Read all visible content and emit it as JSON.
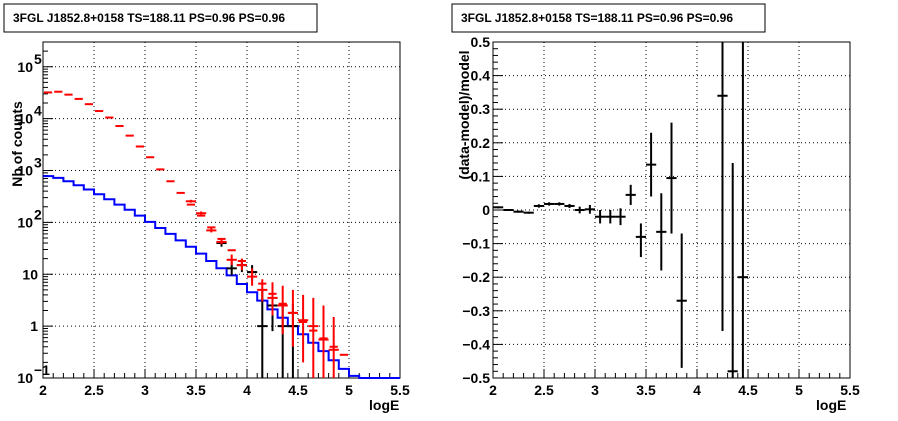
{
  "chart_data": [
    {
      "type": "step-histogram",
      "title": "3FGL J1852.8+0158 TS=188.11 PS=0.96 PS=0.96",
      "xlabel": "logE",
      "ylabel": "Nb of counts",
      "xlim": [
        2,
        5.5
      ],
      "ylim": [
        0.1,
        300000
      ],
      "yscale": "log",
      "xticks": [
        "2",
        "2.5",
        "3",
        "3.5",
        "4",
        "4.5",
        "5",
        "5.5"
      ],
      "yticks": [
        {
          "v": 0.1,
          "base": "10",
          "exp": "−1"
        },
        {
          "v": 1,
          "base": "1",
          "exp": ""
        },
        {
          "v": 10,
          "base": "10",
          "exp": ""
        },
        {
          "v": 100,
          "base": "10",
          "exp": "2"
        },
        {
          "v": 1000,
          "base": "10",
          "exp": "3"
        },
        {
          "v": 10000,
          "base": "10",
          "exp": "4"
        },
        {
          "v": 100000,
          "base": "10",
          "exp": "5"
        }
      ],
      "grid": true,
      "bin_width": 0.1,
      "colors": {
        "total": "#ff0000",
        "source": "#0000ff",
        "data": "#000000"
      },
      "series": [
        {
          "id": "total_model",
          "x": [
            2.05,
            2.15,
            2.25,
            2.35,
            2.45,
            2.55,
            2.65,
            2.75,
            2.85,
            2.95,
            3.05,
            3.15,
            3.25,
            3.35,
            3.45,
            3.55,
            3.65,
            3.75,
            3.85,
            3.95,
            4.05,
            4.15,
            4.25,
            4.35,
            4.45,
            4.55,
            4.65,
            4.75,
            4.85,
            4.95
          ],
          "values": [
            32000,
            33000,
            29000,
            24000,
            19000,
            14000,
            10500,
            7200,
            4700,
            2900,
            1800,
            1050,
            620,
            370,
            220,
            135,
            80,
            48,
            29,
            18,
            11,
            6.6,
            4.2,
            2.7,
            1.8,
            1.2,
            0.82,
            0.58,
            0.4,
            0.28
          ]
        },
        {
          "id": "source_model",
          "x": [
            2.05,
            2.15,
            2.25,
            2.35,
            2.45,
            2.55,
            2.65,
            2.75,
            2.85,
            2.95,
            3.05,
            3.15,
            3.25,
            3.35,
            3.45,
            3.55,
            3.65,
            3.75,
            3.85,
            3.95,
            4.05,
            4.15,
            4.25,
            4.35,
            4.45,
            4.55,
            4.65,
            4.75,
            4.85,
            4.95,
            5.05,
            5.15,
            5.25,
            5.35,
            5.45
          ],
          "values": [
            780,
            720,
            620,
            520,
            430,
            350,
            280,
            220,
            175,
            135,
            102,
            78,
            60,
            45,
            34,
            25,
            18,
            13,
            9.5,
            6.5,
            4.5,
            3.1,
            2.1,
            1.45,
            1.0,
            0.7,
            0.48,
            0.33,
            0.22,
            0.15,
            0.11,
            0.1,
            0.1,
            0.1,
            0.1
          ]
        },
        {
          "id": "counts_points",
          "x": [
            3.75,
            3.85,
            3.95,
            4.05,
            4.15,
            4.25,
            4.35,
            4.45
          ],
          "values": [
            40,
            13,
            15,
            11,
            1.0,
            2.5,
            1.0,
            1.0
          ],
          "err_low": [
            34,
            9.5,
            11,
            7.5,
            0.1,
            0.8,
            0.1,
            0.1
          ],
          "err_high": [
            47,
            17.5,
            19.5,
            15,
            5,
            6,
            2.7,
            2.7
          ]
        },
        {
          "id": "red_points",
          "x": [
            3.45,
            3.55,
            3.65,
            3.75,
            3.85,
            3.95,
            4.05,
            4.15,
            4.25,
            4.35,
            4.45,
            4.55,
            4.65,
            4.75,
            4.85
          ],
          "values": [
            255,
            150,
            70,
            42,
            19,
            15,
            9,
            5,
            3.5,
            2.5,
            1.8,
            1.3,
            1.0,
            0.55,
            0.35
          ],
          "err_low": [
            240,
            140,
            64,
            38,
            15,
            12,
            6,
            3,
            1.6,
            0.7,
            0.4,
            0.2,
            0.1,
            0.1,
            0.1
          ],
          "err_high": [
            272,
            162,
            78,
            48,
            24,
            20,
            13,
            8,
            7,
            6,
            5,
            4,
            3.5,
            2.5,
            1.5
          ]
        }
      ]
    },
    {
      "type": "error-points",
      "title": "3FGL J1852.8+0158 TS=188.11 PS=0.96 PS=0.96",
      "xlabel": "logE",
      "ylabel": "(data-model)/model",
      "xlim": [
        2,
        5.5
      ],
      "ylim": [
        -0.5,
        0.5
      ],
      "xticks": [
        "2",
        "2.5",
        "3",
        "3.5",
        "4",
        "4.5",
        "5",
        "5.5"
      ],
      "yticks": [
        "−0.5",
        "−0.4",
        "−0.3",
        "−0.2",
        "−0.1",
        "0",
        "0.1",
        "0.2",
        "0.3",
        "0.4",
        "0.5"
      ],
      "grid": true,
      "color": "#000000",
      "points": {
        "x": [
          2.05,
          2.15,
          2.25,
          2.35,
          2.45,
          2.55,
          2.65,
          2.75,
          2.85,
          2.95,
          3.05,
          3.15,
          3.25,
          3.35,
          3.45,
          3.55,
          3.65,
          3.75,
          3.85,
          4.25,
          4.35,
          4.45
        ],
        "y": [
          0.008,
          0.0,
          -0.005,
          -0.008,
          0.012,
          0.018,
          0.018,
          0.012,
          0.0,
          0.002,
          -0.02,
          -0.02,
          -0.02,
          0.045,
          -0.08,
          0.135,
          -0.065,
          0.095,
          -0.27,
          0.34,
          -0.48,
          -0.2
        ],
        "err_low": [
          0.003,
          0.003,
          0.003,
          0.003,
          0.005,
          0.005,
          0.005,
          0.006,
          0.01,
          0.013,
          0.02,
          0.02,
          0.025,
          0.03,
          0.06,
          0.095,
          0.115,
          0.165,
          0.2,
          0.7,
          0.5,
          0.5
        ],
        "err_high": [
          0.003,
          0.003,
          0.003,
          0.003,
          0.005,
          0.005,
          0.005,
          0.006,
          0.01,
          0.013,
          0.02,
          0.02,
          0.025,
          0.03,
          0.04,
          0.095,
          0.115,
          0.165,
          0.2,
          0.5,
          0.62,
          0.7
        ]
      }
    }
  ]
}
